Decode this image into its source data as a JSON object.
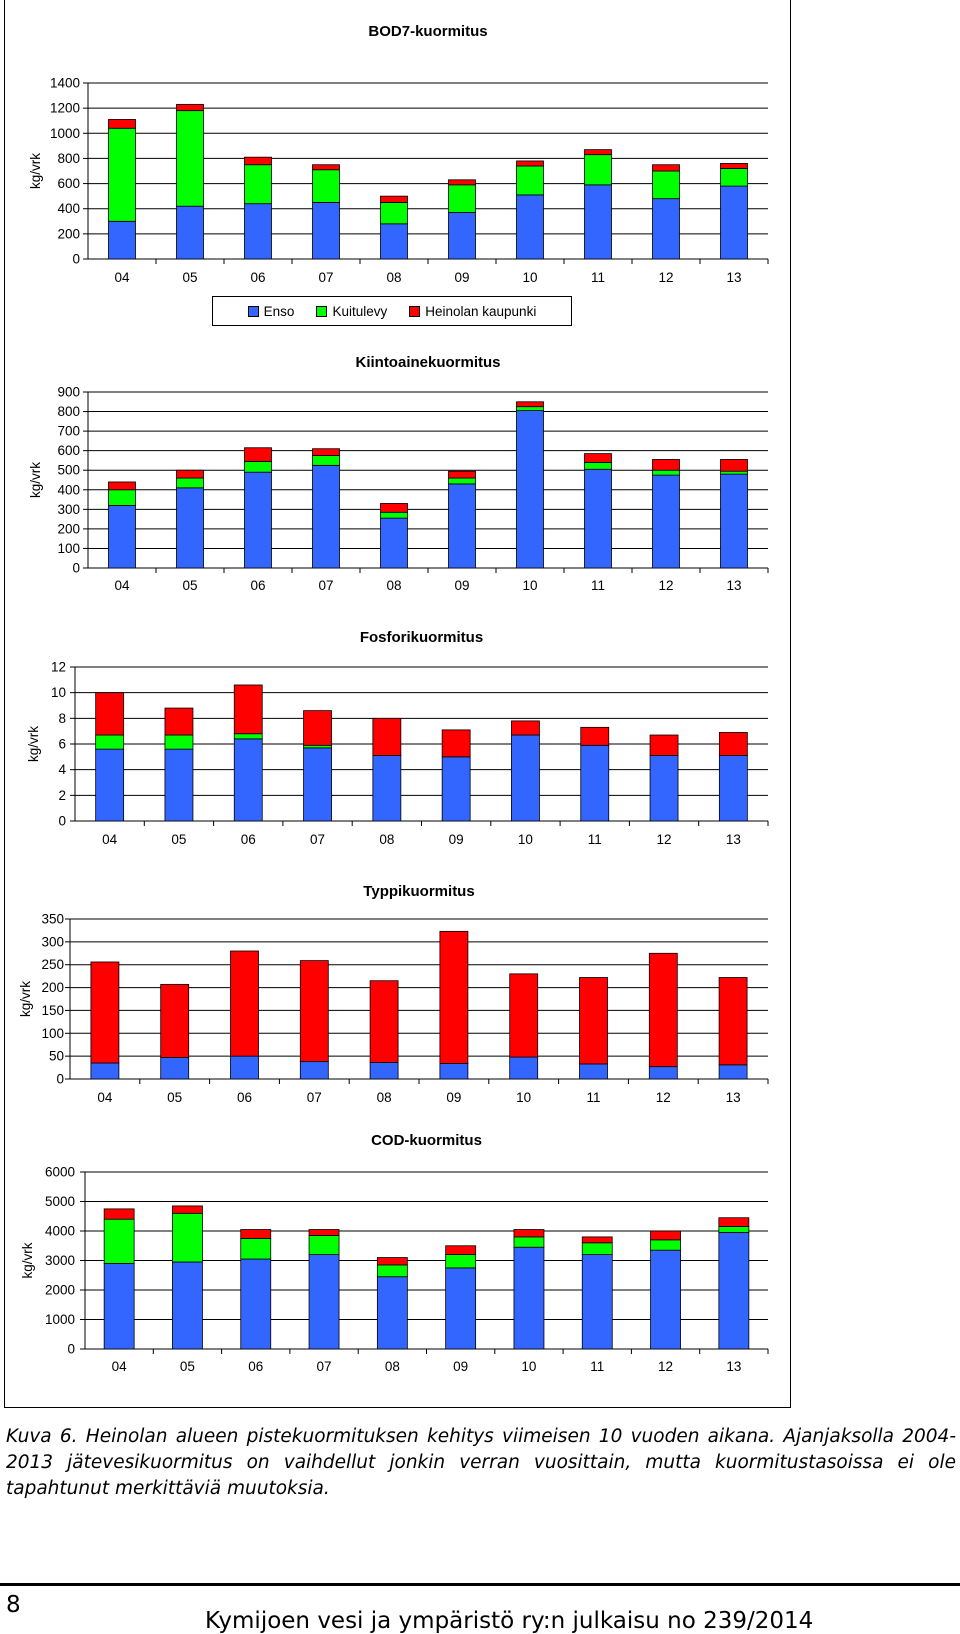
{
  "colors": {
    "enso": "#3366ff",
    "kuitulevy": "#00ff00",
    "heinola": "#ff0000",
    "grid": "#000000"
  },
  "legend": [
    {
      "label": "Enso",
      "color": "#3366ff"
    },
    {
      "label": "Kuitulevy",
      "color": "#00ff00"
    },
    {
      "label": "Heinolan kaupunki",
      "color": "#ff0000"
    }
  ],
  "chart_data": [
    {
      "type": "bar",
      "stacked": true,
      "title": "BOD7-kuormitus",
      "ylabel": "kg/vrk",
      "xlabel": "",
      "categories": [
        "04",
        "05",
        "06",
        "07",
        "08",
        "09",
        "10",
        "11",
        "12",
        "13"
      ],
      "ylim": [
        0,
        1400
      ],
      "yticks": [
        0,
        200,
        400,
        600,
        800,
        1000,
        1200,
        1400
      ],
      "grid": true,
      "series": [
        {
          "name": "Enso",
          "values": [
            300,
            420,
            440,
            450,
            280,
            370,
            510,
            590,
            480,
            580
          ]
        },
        {
          "name": "Kuitulevy",
          "values": [
            740,
            760,
            310,
            260,
            170,
            220,
            230,
            240,
            220,
            140
          ]
        },
        {
          "name": "Heinolan kaupunki",
          "values": [
            70,
            50,
            60,
            40,
            50,
            40,
            40,
            40,
            50,
            40
          ]
        }
      ]
    },
    {
      "type": "bar",
      "stacked": true,
      "title": "Kiintoainekuormitus",
      "ylabel": "kg/vrk",
      "xlabel": "",
      "categories": [
        "04",
        "05",
        "06",
        "07",
        "08",
        "09",
        "10",
        "11",
        "12",
        "13"
      ],
      "ylim": [
        0,
        900
      ],
      "yticks": [
        0,
        100,
        200,
        300,
        400,
        500,
        600,
        700,
        800,
        900
      ],
      "grid": true,
      "series": [
        {
          "name": "Enso",
          "values": [
            320,
            410,
            490,
            525,
            255,
            430,
            805,
            505,
            475,
            480
          ]
        },
        {
          "name": "Kuitulevy",
          "values": [
            80,
            50,
            55,
            50,
            30,
            30,
            20,
            35,
            25,
            15
          ]
        },
        {
          "name": "Heinolan kaupunki",
          "values": [
            40,
            40,
            70,
            35,
            45,
            35,
            25,
            45,
            55,
            60
          ]
        }
      ]
    },
    {
      "type": "bar",
      "stacked": true,
      "title": "Fosforikuormitus",
      "ylabel": "kg/vrk",
      "xlabel": "",
      "categories": [
        "04",
        "05",
        "06",
        "07",
        "08",
        "09",
        "10",
        "11",
        "12",
        "13"
      ],
      "ylim": [
        0,
        12
      ],
      "yticks": [
        0,
        2,
        4,
        6,
        8,
        10,
        12
      ],
      "grid": true,
      "series": [
        {
          "name": "Enso",
          "values": [
            5.6,
            5.6,
            6.4,
            5.7,
            5.1,
            5.0,
            6.7,
            5.9,
            5.1,
            5.1
          ]
        },
        {
          "name": "Kuitulevy",
          "values": [
            1.1,
            1.1,
            0.4,
            0.2,
            0.0,
            0.0,
            0.0,
            0.0,
            0.0,
            0.0
          ]
        },
        {
          "name": "Heinolan kaupunki",
          "values": [
            3.3,
            2.1,
            3.8,
            2.7,
            2.9,
            2.1,
            1.1,
            1.4,
            1.6,
            1.8
          ]
        }
      ]
    },
    {
      "type": "bar",
      "stacked": true,
      "title": "Typpikuormitus",
      "ylabel": "kg/vrk",
      "xlabel": "",
      "categories": [
        "04",
        "05",
        "06",
        "07",
        "08",
        "09",
        "10",
        "11",
        "12",
        "13"
      ],
      "ylim": [
        0,
        350
      ],
      "yticks": [
        0,
        50,
        100,
        150,
        200,
        250,
        300,
        350
      ],
      "grid": true,
      "series": [
        {
          "name": "Enso",
          "values": [
            35,
            47,
            50,
            38,
            36,
            34,
            48,
            33,
            27,
            31
          ]
        },
        {
          "name": "Kuitulevy",
          "values": [
            0,
            0,
            0,
            0,
            0,
            0,
            0,
            0,
            0,
            0
          ]
        },
        {
          "name": "Heinolan kaupunki",
          "values": [
            221,
            160,
            230,
            221,
            179,
            289,
            182,
            189,
            248,
            191
          ]
        }
      ]
    },
    {
      "type": "bar",
      "stacked": true,
      "title": "COD-kuormitus",
      "ylabel": "kg/vrk",
      "xlabel": "",
      "categories": [
        "04",
        "05",
        "06",
        "07",
        "08",
        "09",
        "10",
        "11",
        "12",
        "13"
      ],
      "ylim": [
        0,
        6000
      ],
      "yticks": [
        0,
        1000,
        2000,
        3000,
        4000,
        5000,
        6000
      ],
      "grid": true,
      "series": [
        {
          "name": "Enso",
          "values": [
            2900,
            2950,
            3050,
            3200,
            2450,
            2750,
            3450,
            3200,
            3350,
            3950
          ]
        },
        {
          "name": "Kuitulevy",
          "values": [
            1500,
            1650,
            700,
            650,
            400,
            450,
            350,
            400,
            350,
            200
          ]
        },
        {
          "name": "Heinolan kaupunki",
          "values": [
            350,
            250,
            300,
            200,
            250,
            300,
            250,
            200,
            300,
            300
          ]
        }
      ]
    }
  ],
  "caption": "Kuva 6. Heinolan alueen pistekuormituksen kehitys viimeisen 10 vuoden aikana. Ajanjaksolla 2004-2013 jätevesikuormitus on vaihdellut jonkin verran vuosittain, mutta kuormitustasoissa ei ole tapahtunut merkittäviä muutoksia.",
  "footer": {
    "page_number": "8",
    "publication": "Kymijoen vesi ja ympäristö ry:n julkaisu no 239/2014"
  }
}
